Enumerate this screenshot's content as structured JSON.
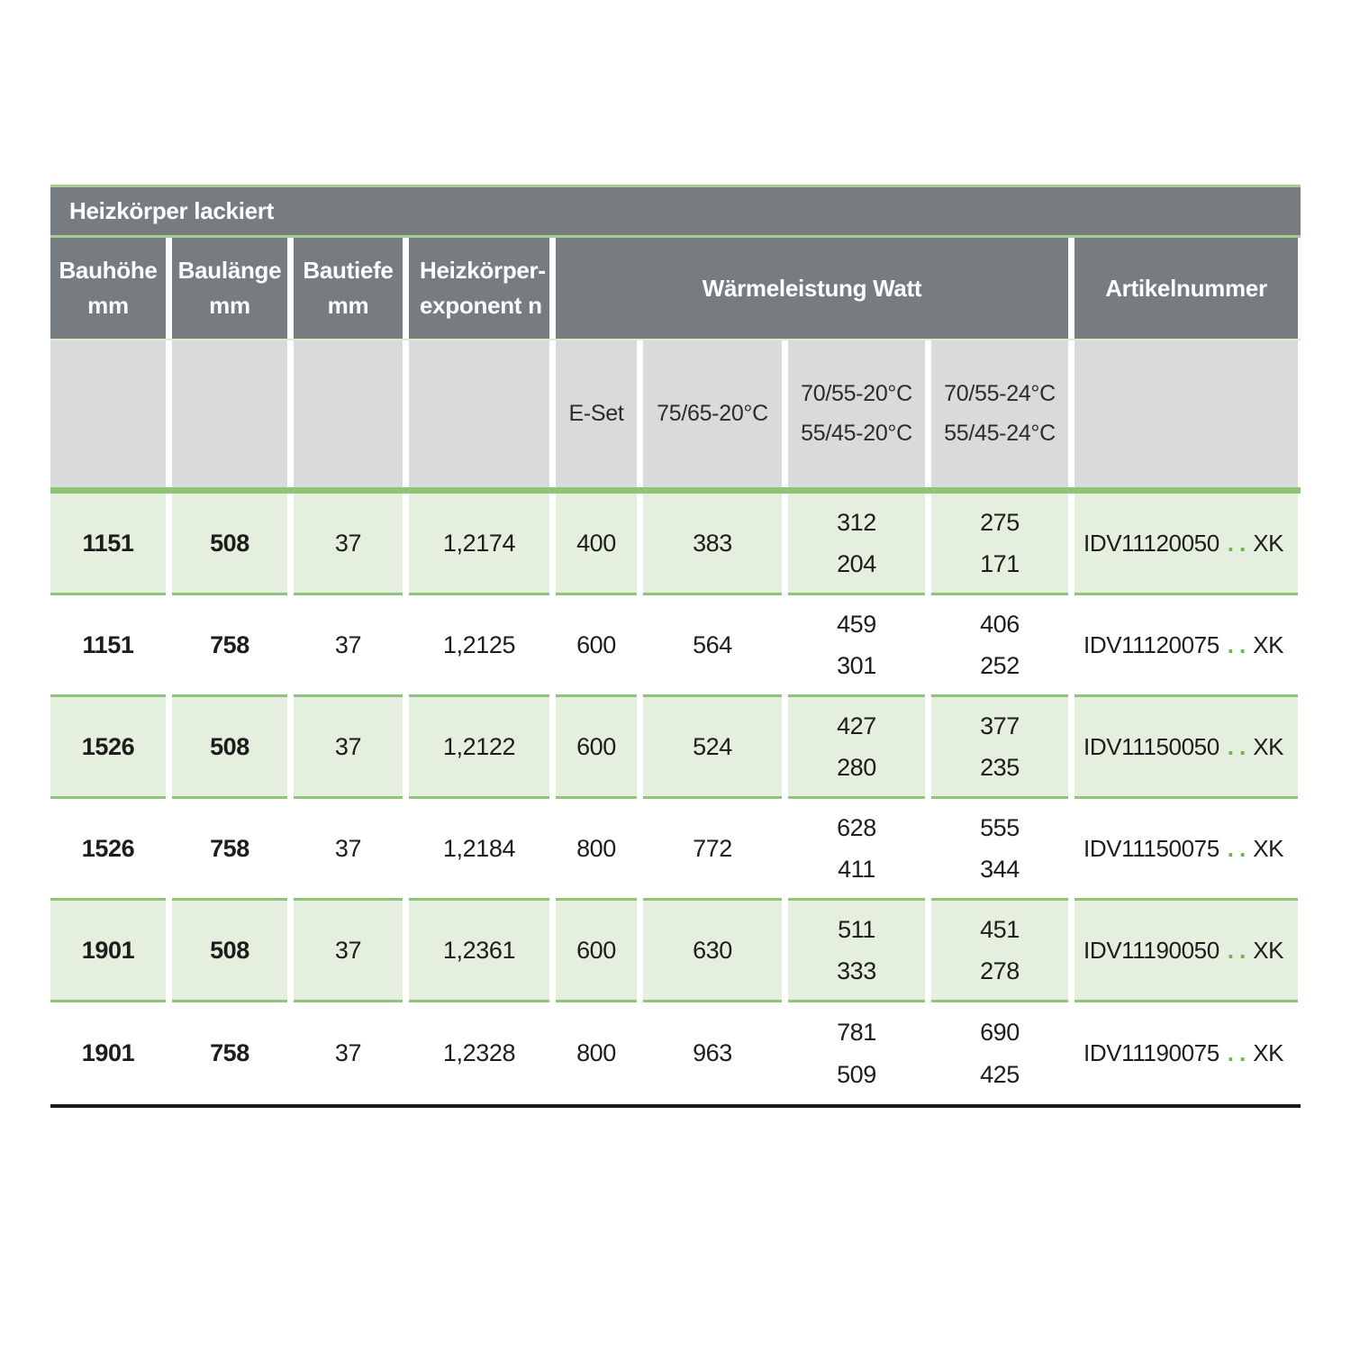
{
  "title": "Heizkörper lackiert",
  "headers": {
    "col1": "Bauhöhe\nmm",
    "col2": "Baulänge\nmm",
    "col3": "Bautiefe\nmm",
    "col4": "Heizkörper-\nexponent n",
    "waerme": "Wärmeleistung Watt",
    "artikel": "Artikelnummer"
  },
  "subheaders": {
    "eset": "E-Set",
    "t7565": "75/65-20°C",
    "t7055_20": "70/55-20°C\n55/45-20°C",
    "t7055_24": "70/55-24°C\n55/45-24°C"
  },
  "rows": [
    {
      "bauhoehe": "1151",
      "baulaenge": "508",
      "bautiefe": "37",
      "exponent": "1,2174",
      "eset": "400",
      "w7565": "383",
      "w7055_20": "312\n204",
      "w7055_24": "275\n171",
      "artikel_prefix": "IDV11120050",
      "artikel_dots": "..",
      "artikel_suffix": "XK"
    },
    {
      "bauhoehe": "1151",
      "baulaenge": "758",
      "bautiefe": "37",
      "exponent": "1,2125",
      "eset": "600",
      "w7565": "564",
      "w7055_20": "459\n301",
      "w7055_24": "406\n252",
      "artikel_prefix": "IDV11120075",
      "artikel_dots": "..",
      "artikel_suffix": "XK"
    },
    {
      "bauhoehe": "1526",
      "baulaenge": "508",
      "bautiefe": "37",
      "exponent": "1,2122",
      "eset": "600",
      "w7565": "524",
      "w7055_20": "427\n280",
      "w7055_24": "377\n235",
      "artikel_prefix": "IDV11150050",
      "artikel_dots": "..",
      "artikel_suffix": "XK"
    },
    {
      "bauhoehe": "1526",
      "baulaenge": "758",
      "bautiefe": "37",
      "exponent": "1,2184",
      "eset": "800",
      "w7565": "772",
      "w7055_20": "628\n411",
      "w7055_24": "555\n344",
      "artikel_prefix": "IDV11150075",
      "artikel_dots": "..",
      "artikel_suffix": "XK"
    },
    {
      "bauhoehe": "1901",
      "baulaenge": "508",
      "bautiefe": "37",
      "exponent": "1,2361",
      "eset": "600",
      "w7565": "630",
      "w7055_20": "511\n333",
      "w7055_24": "451\n278",
      "artikel_prefix": "IDV11190050",
      "artikel_dots": "..",
      "artikel_suffix": "XK"
    },
    {
      "bauhoehe": "1901",
      "baulaenge": "758",
      "bautiefe": "37",
      "exponent": "1,2328",
      "eset": "800",
      "w7565": "963",
      "w7055_20": "781\n509",
      "w7055_24": "690\n425",
      "artikel_prefix": "IDV11190075",
      "artikel_dots": "..",
      "artikel_suffix": "XK"
    }
  ],
  "colors": {
    "header_gray": "#767c7f",
    "subheader_gray": "#d9dadb",
    "row_green": "#e5efde",
    "sep_green": "#8fc47c",
    "thick_green": "#8cc478",
    "band_line_green": "#a6cc91",
    "hairline_green": "#dcead2",
    "dot_green": "#69b54c",
    "text_dark": "#1d1d1b",
    "bottom_line": "#1a1a1a"
  }
}
